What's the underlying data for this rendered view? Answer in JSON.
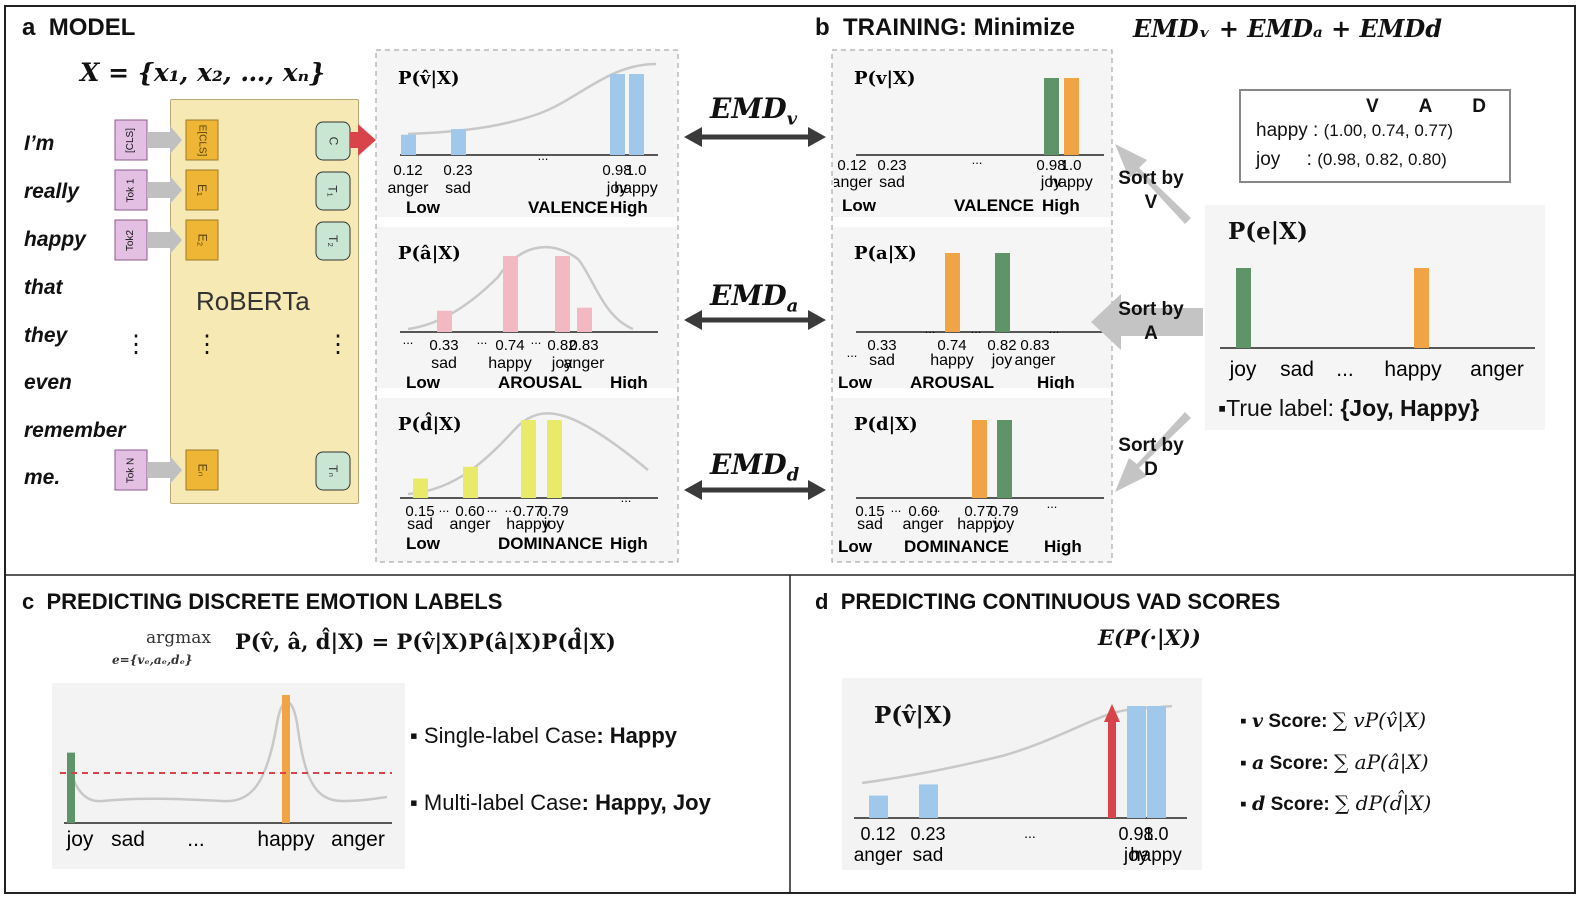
{
  "panel_a": {
    "letter": "a",
    "title": "MODEL",
    "input_set": "X = {x₁, x₂, …, xₙ}",
    "words": [
      "I’m",
      "really",
      "happy",
      "that",
      "they",
      "even",
      "remember",
      "me."
    ],
    "tokens": [
      "[CLS]",
      "Tok 1",
      "Tok2",
      "Tok N"
    ],
    "embeddings": [
      "E[CLS]",
      "E₁",
      "E₂",
      "Eₙ"
    ],
    "outputs": [
      "C",
      "T₁",
      "T₂",
      "Tₙ"
    ],
    "encoder": "RoBERTa",
    "dots": "⋮"
  },
  "panel_b": {
    "letter": "b",
    "title": "TRAINING:",
    "title_rest": "Minimize",
    "objective": "EMDᵥ + EMDₐ + EMDd",
    "emd_labels": [
      "EMD",
      "EMD",
      "EMD"
    ],
    "emd_subs": [
      "v",
      "a",
      "d"
    ],
    "sort_labels": [
      "Sort by V",
      "Sort by A",
      "Sort by D"
    ],
    "vad_table": {
      "header": [
        "V",
        "A",
        "D"
      ],
      "rows": [
        {
          "label": "happy :",
          "values": "(1.00, 0.74, 0.77)"
        },
        {
          "label": "joy     :",
          "values": "(0.98, 0.82, 0.80)"
        }
      ]
    },
    "emotion_dist": {
      "title": "P(e|X)",
      "categories": [
        "joy",
        "sad",
        "...",
        "happy",
        "anger"
      ],
      "true_label_prefix": "▪True label: ",
      "true_label_value": "{Joy, Happy}"
    }
  },
  "panel_c": {
    "letter": "c",
    "title": "PREDICTING DISCRETE EMOTION LABELS",
    "formula_argmax": "argmax",
    "formula_sub": "e={vₑ,aₑ,dₑ}",
    "formula": "P(v̂, â, d̂|X) = P(v̂|X)P(â|X)P(d̂|X)",
    "x_labels": [
      "joy",
      "sad",
      "...",
      "happy",
      "anger"
    ],
    "single_label_prefix": "▪ Single-label Case",
    "single_label_value": ": Happy",
    "multi_label_prefix": "▪ Multi-label Case",
    "multi_label_value": ": Happy, Joy"
  },
  "panel_d": {
    "letter": "d",
    "title": "PREDICTING CONTINUOUS VAD SCORES",
    "expectation": "E(P(·|X))",
    "dist_title": "P(v̂|X)",
    "score_items": [
      {
        "sym": "v",
        "label": " Score: ",
        "formula": "∑ vP(v̂|X)"
      },
      {
        "sym": "a",
        "label": " Score: ",
        "formula": "∑ aP(â|X)"
      },
      {
        "sym": "d",
        "label": " Score: ",
        "formula": "∑ dP(d̂|X)"
      }
    ]
  },
  "colors": {
    "valence": "#9fc8ea",
    "arousal": "#f3b9c2",
    "dominance": "#eaea6a",
    "green": "#5f9468",
    "orange": "#f0a446",
    "red_arrow": "#d9444a",
    "roberta": "#f7e9b4",
    "token": "#e3c0e3",
    "embed": "#eeb634",
    "out": "#c8e6d2"
  },
  "chart_data": [
    {
      "id": "pred-valence",
      "type": "bar",
      "title": "P(v̂|X)",
      "axis_name": "VALENCE",
      "low": "Low",
      "high": "High",
      "xlim": [
        0,
        1
      ],
      "values_x": [
        0.12,
        0.23,
        0.98,
        1.0
      ],
      "value_labels": [
        "0.12",
        "0.23",
        "0.98",
        "1.0"
      ],
      "categories": [
        "anger",
        "sad",
        "joy",
        "happy"
      ],
      "heights": [
        0.25,
        0.32,
        1.0,
        1.0
      ],
      "bar_colors": [
        "valence",
        "valence",
        "valence",
        "valence"
      ],
      "dots": [
        "..."
      ]
    },
    {
      "id": "pred-arousal",
      "type": "bar",
      "title": "P(â|X)",
      "axis_name": "AROUSAL",
      "low": "Low",
      "high": "High",
      "xlim": [
        0,
        1
      ],
      "values_x": [
        0.33,
        0.74,
        0.82,
        0.83
      ],
      "value_labels": [
        "0.33",
        "0.74",
        "0.82",
        "0.83"
      ],
      "categories": [
        "sad",
        "happy",
        "joy",
        "anger"
      ],
      "heights": [
        0.28,
        1.0,
        1.0,
        0.32
      ],
      "bar_colors": [
        "arousal",
        "arousal",
        "arousal",
        "arousal"
      ],
      "dots": [
        "...",
        "...",
        "..."
      ]
    },
    {
      "id": "pred-dominance",
      "type": "bar",
      "title": "P(d̂|X)",
      "axis_name": "DOMINANCE",
      "low": "Low",
      "high": "High",
      "xlim": [
        0,
        1
      ],
      "values_x": [
        0.15,
        0.6,
        0.77,
        0.79
      ],
      "value_labels": [
        "0.15",
        "0.60",
        "0.77",
        "0.79"
      ],
      "categories": [
        "sad",
        "anger",
        "happy",
        "joy"
      ],
      "heights": [
        0.25,
        0.4,
        1.0,
        1.0
      ],
      "bar_colors": [
        "dominance",
        "dominance",
        "dominance",
        "dominance"
      ],
      "dots": [
        "...",
        "...",
        "..."
      ]
    },
    {
      "id": "true-valence",
      "type": "bar",
      "title": "P(v|X)",
      "axis_name": "VALENCE",
      "low": "Low",
      "high": "High",
      "xlim": [
        0,
        1
      ],
      "values_x": [
        0.12,
        0.23,
        0.98,
        1.0
      ],
      "value_labels": [
        "0.12",
        "0.23",
        "0.98",
        "1.0"
      ],
      "categories": [
        "anger",
        "sad",
        "joy",
        "happy"
      ],
      "heights": [
        0,
        0,
        1.0,
        1.0
      ],
      "bar_colors": [
        "green",
        "green",
        "green",
        "orange"
      ],
      "dots": [
        "..."
      ]
    },
    {
      "id": "true-arousal",
      "type": "bar",
      "title": "P(a|X)",
      "axis_name": "AROUSAL",
      "low": "Low",
      "high": "High",
      "xlim": [
        0,
        1
      ],
      "values_x": [
        0.33,
        0.74,
        0.82,
        0.83
      ],
      "value_labels": [
        "0.33",
        "0.74",
        "0.82",
        "0.83"
      ],
      "categories": [
        "sad",
        "happy",
        "joy",
        "anger"
      ],
      "heights": [
        0,
        1.0,
        1.0,
        0
      ],
      "bar_colors": [
        "orange",
        "orange",
        "green",
        "green"
      ],
      "dots": [
        "...",
        "...",
        "...",
        "...",
        "..."
      ]
    },
    {
      "id": "true-dominance",
      "type": "bar",
      "title": "P(d|X)",
      "axis_name": "DOMINANCE",
      "low": "Low",
      "high": "High",
      "xlim": [
        0,
        1
      ],
      "values_x": [
        0.15,
        0.6,
        0.77,
        0.79
      ],
      "value_labels": [
        "0.15",
        "0.60",
        "0.77",
        "0.79"
      ],
      "categories": [
        "sad",
        "anger",
        "happy",
        "joy"
      ],
      "heights": [
        0,
        0,
        1.0,
        1.0
      ],
      "bar_colors": [
        "orange",
        "orange",
        "orange",
        "green"
      ],
      "dots": [
        "...",
        "...",
        "..."
      ]
    },
    {
      "id": "emotion-dist",
      "type": "bar",
      "title": "P(e|X)",
      "categories": [
        "joy",
        "sad",
        "...",
        "happy",
        "anger"
      ],
      "values": [
        1,
        0,
        0,
        1,
        0
      ],
      "bar_colors": [
        "green",
        "",
        "",
        "orange",
        ""
      ]
    },
    {
      "id": "argmax-curve",
      "type": "line",
      "title": "argmax P(v̂, â, d̂|X)",
      "categories": [
        "joy",
        "sad",
        "...",
        "happy",
        "anger"
      ],
      "peaks": {
        "joy": 0.55,
        "happy": 1.0
      },
      "threshold": 0.35
    },
    {
      "id": "vad-score",
      "type": "bar",
      "title": "P(v̂|X)",
      "values_x": [
        0.12,
        0.23,
        0.98,
        1.0
      ],
      "value_labels": [
        "0.12",
        "0.23",
        "0.98",
        "1.0"
      ],
      "categories": [
        "anger",
        "sad",
        "joy",
        "happy"
      ],
      "heights": [
        0.2,
        0.3,
        1.0,
        1.0
      ],
      "dots": [
        "..."
      ]
    }
  ]
}
